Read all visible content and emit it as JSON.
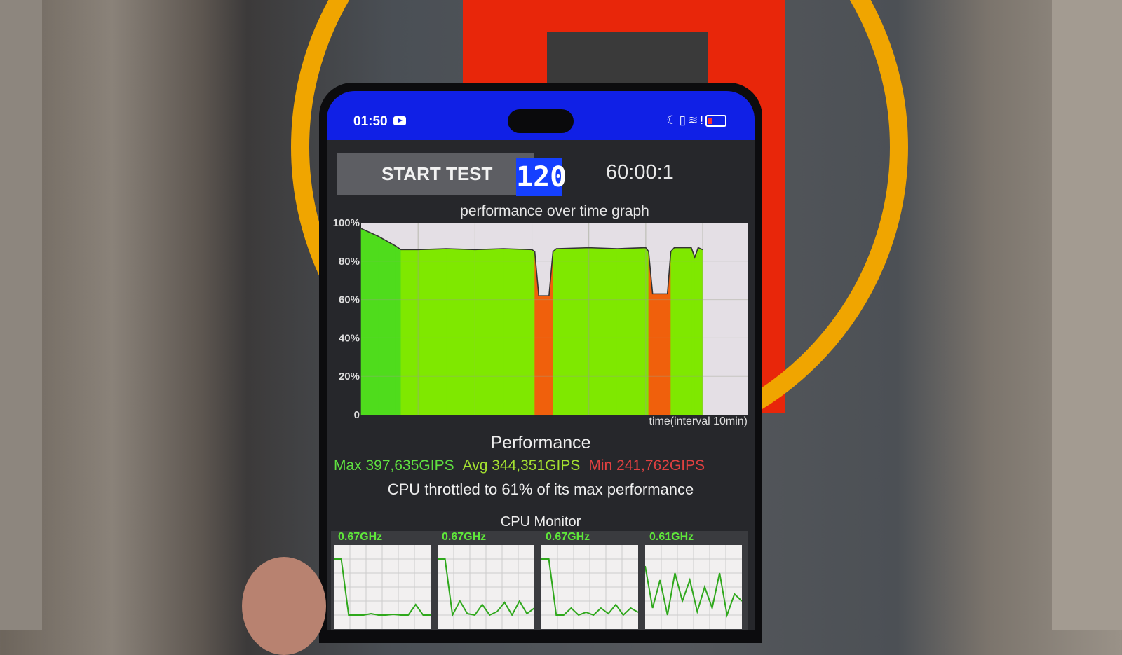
{
  "status_bar": {
    "time": "01:50",
    "icons": [
      "youtube-icon",
      "moon-icon",
      "vibrate-icon",
      "wifi-icon",
      "alert-icon",
      "battery-low-icon"
    ]
  },
  "controls": {
    "start_label": "START TEST",
    "threads_badge": "120",
    "elapsed": "60:00:1"
  },
  "graph": {
    "title": "performance over time graph",
    "x_label": "time(interval 10min)"
  },
  "chart_data": {
    "type": "area",
    "title": "performance over time graph",
    "xlabel": "time(interval 10min)",
    "ylabel": "",
    "y_ticks": [
      "0",
      "20%",
      "40%",
      "60%",
      "80%",
      "100%"
    ],
    "ylim": [
      0,
      100
    ],
    "xlim": [
      0,
      68
    ],
    "x_unit": "min",
    "grid": true,
    "points": [
      [
        0,
        97
      ],
      [
        3,
        93
      ],
      [
        6,
        88
      ],
      [
        7,
        86
      ],
      [
        10,
        86
      ],
      [
        15,
        86.5
      ],
      [
        20,
        86
      ],
      [
        25,
        86.5
      ],
      [
        30,
        86
      ],
      [
        30.5,
        85
      ],
      [
        31.2,
        62
      ],
      [
        33,
        62
      ],
      [
        33.7,
        85
      ],
      [
        34.3,
        86.5
      ],
      [
        40,
        87
      ],
      [
        45,
        86.5
      ],
      [
        50,
        87
      ],
      [
        50.5,
        85
      ],
      [
        51.2,
        63
      ],
      [
        53.8,
        63
      ],
      [
        54.4,
        85
      ],
      [
        55,
        87
      ],
      [
        58,
        87
      ],
      [
        58.6,
        82
      ],
      [
        59.2,
        87
      ],
      [
        60,
        86
      ]
    ],
    "colors": {
      "high": "#4fdc1c",
      "normal": "#7fe800",
      "throttled": "#f0600c",
      "empty": "#e4dfe5"
    }
  },
  "performance": {
    "title": "Performance",
    "max": "Max 397,635GIPS",
    "avg": "Avg 344,351GIPS",
    "min": "Min 241,762GIPS",
    "summary": "CPU throttled to 61% of its max performance",
    "colors": {
      "max": "#5fe040",
      "avg": "#a4e030",
      "min": "#e04040"
    }
  },
  "cpu_monitor": {
    "title": "CPU Monitor",
    "cores": [
      {
        "freq": "0.67GHz",
        "load": [
          90,
          90,
          10,
          10,
          10,
          12,
          10,
          10,
          11,
          10,
          10,
          25,
          10,
          10
        ]
      },
      {
        "freq": "0.67GHz",
        "load": [
          90,
          90,
          10,
          30,
          12,
          10,
          25,
          10,
          15,
          28,
          10,
          30,
          12,
          20
        ]
      },
      {
        "freq": "0.67GHz",
        "load": [
          90,
          90,
          10,
          10,
          20,
          10,
          14,
          10,
          20,
          12,
          25,
          10,
          20,
          14
        ]
      },
      {
        "freq": "0.61GHz",
        "load": [
          80,
          20,
          60,
          10,
          70,
          30,
          60,
          15,
          50,
          20,
          70,
          10,
          40,
          30
        ]
      }
    ]
  }
}
